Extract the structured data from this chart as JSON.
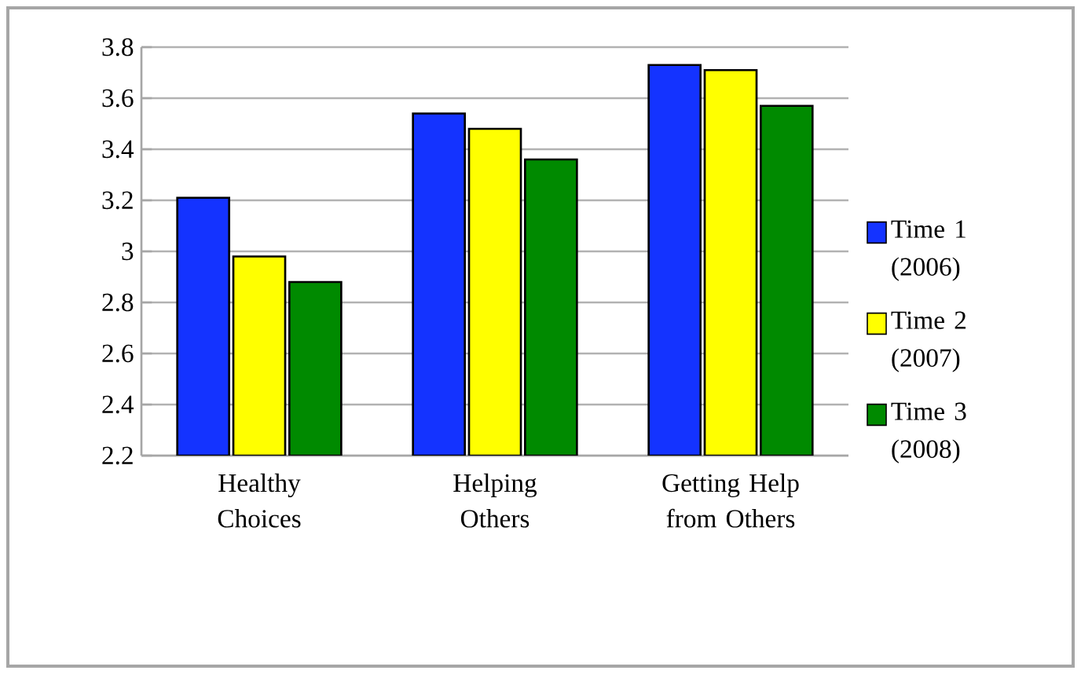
{
  "chart_data": {
    "type": "bar",
    "categories": [
      "Healthy Choices",
      "Helping Others",
      "Getting Help from Others"
    ],
    "series": [
      {
        "name": "Time 1 (2006)",
        "color": "#1433ff",
        "values": [
          3.21,
          3.54,
          3.73
        ]
      },
      {
        "name": "Time 2 (2007)",
        "color": "#ffff00",
        "values": [
          2.98,
          3.48,
          3.71
        ]
      },
      {
        "name": "Time 3 (2008)",
        "color": "#008a00",
        "values": [
          2.88,
          3.36,
          3.57
        ]
      }
    ],
    "ylim": [
      2.2,
      3.8
    ],
    "yticks": [
      2.2,
      2.4,
      2.6,
      2.8,
      3,
      3.2,
      3.4,
      3.6,
      3.8
    ],
    "grid": "y",
    "legend": "right"
  }
}
